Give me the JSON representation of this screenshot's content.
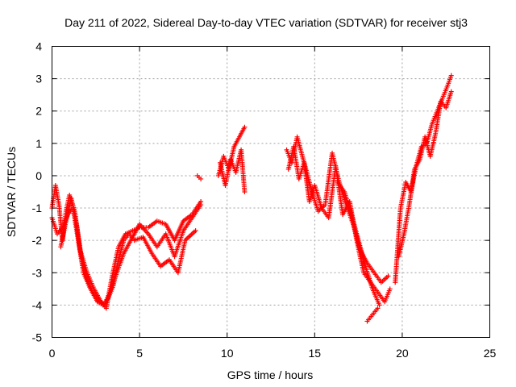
{
  "chart_data": {
    "type": "scatter",
    "title": "Day 211 of 2022, Sidereal Day-to-day VTEC variation (SDTVAR) for receiver stj3",
    "xlabel": "GPS time / hours",
    "ylabel": "SDTVAR / TECUs",
    "xlim": [
      0,
      25
    ],
    "ylim": [
      -5,
      4
    ],
    "xticks": [
      "0",
      "5",
      "10",
      "15",
      "20",
      "25"
    ],
    "yticks": [
      "-5",
      "-4",
      "-3",
      "-2",
      "-1",
      "0",
      "1",
      "2",
      "3",
      "4"
    ],
    "grid": true,
    "marker": "+",
    "color": "#ff0000",
    "series": [
      {
        "name": "SDTVAR",
        "segments": [
          {
            "x": [
              0.0,
              0.2,
              0.4,
              0.6,
              0.8,
              1.0,
              1.3,
              1.6,
              2.0,
              2.4,
              2.8,
              3.1,
              3.4,
              3.8,
              4.2,
              4.6,
              5.0,
              5.5,
              6.0,
              6.5,
              7.0,
              7.5,
              8.0,
              8.5
            ],
            "y": [
              -1.0,
              -0.3,
              -0.9,
              -2.0,
              -1.1,
              -0.6,
              -1.1,
              -2.3,
              -3.0,
              -3.5,
              -3.9,
              -4.1,
              -3.2,
              -2.2,
              -1.8,
              -1.7,
              -1.6,
              -1.6,
              -1.4,
              -1.5,
              -2.0,
              -1.4,
              -1.2,
              -0.8
            ]
          },
          {
            "x": [
              0.0,
              0.3,
              0.6,
              0.9,
              1.2,
              1.5,
              1.8,
              2.2,
              2.6,
              3.0,
              3.3,
              3.7,
              4.1,
              4.5,
              5.0,
              5.5,
              6.0,
              6.5,
              7.0,
              7.5,
              8.0,
              8.5
            ],
            "y": [
              -1.3,
              -1.8,
              -1.6,
              -1.2,
              -1.0,
              -2.0,
              -3.0,
              -3.5,
              -3.8,
              -4.0,
              -3.6,
              -3.0,
              -2.4,
              -2.0,
              -1.5,
              -1.8,
              -2.2,
              -1.8,
              -2.5,
              -1.7,
              -1.3,
              -0.9
            ]
          },
          {
            "x": [
              0.5,
              0.8,
              1.1,
              1.4,
              1.7,
              2.0,
              2.3,
              2.6,
              2.9,
              3.2,
              3.5,
              3.8,
              4.1,
              4.4,
              4.7,
              5.2,
              5.7,
              6.2,
              6.7,
              7.2,
              7.6,
              8.2
            ],
            "y": [
              -2.2,
              -1.4,
              -0.7,
              -1.5,
              -2.6,
              -3.2,
              -3.6,
              -3.9,
              -4.0,
              -3.8,
              -3.4,
              -2.6,
              -2.0,
              -1.8,
              -2.0,
              -1.9,
              -2.4,
              -2.8,
              -2.6,
              -3.0,
              -2.0,
              -1.7
            ]
          },
          {
            "x": [
              8.3,
              8.5
            ],
            "y": [
              0.0,
              -0.1
            ]
          },
          {
            "x": [
              9.5,
              9.8,
              10.1,
              10.4,
              10.7,
              11.0
            ],
            "y": [
              0.0,
              0.6,
              0.2,
              0.9,
              1.2,
              1.5
            ]
          },
          {
            "x": [
              9.6,
              9.9,
              10.2,
              10.5,
              10.8,
              11.0
            ],
            "y": [
              0.4,
              -0.3,
              0.5,
              0.1,
              0.8,
              -0.5
            ]
          },
          {
            "x": [
              13.4,
              13.7,
              14.0,
              14.3,
              14.6,
              14.9,
              15.2,
              15.6,
              16.0,
              16.4,
              16.8,
              17.2,
              17.6,
              18.0,
              18.4,
              18.8,
              19.2
            ],
            "y": [
              0.8,
              0.4,
              1.2,
              0.6,
              0.0,
              -0.6,
              -1.1,
              -0.9,
              0.7,
              -0.2,
              -0.9,
              -1.5,
              -2.3,
              -2.7,
              -3.0,
              -3.3,
              -3.1
            ]
          },
          {
            "x": [
              13.5,
              13.8,
              14.1,
              14.4,
              14.7,
              15.0,
              15.4,
              15.8,
              16.2,
              16.6,
              17.0,
              17.4,
              17.8,
              18.2,
              18.6,
              19.0,
              19.3
            ],
            "y": [
              0.2,
              0.9,
              -0.1,
              0.4,
              -0.8,
              -0.3,
              -1.0,
              -1.3,
              0.3,
              -1.2,
              -0.8,
              -2.0,
              -3.0,
              -3.3,
              -3.6,
              -3.9,
              -3.5
            ]
          },
          {
            "x": [
              16.3,
              16.7,
              17.1,
              17.5,
              17.9,
              18.3,
              18.7
            ],
            "y": [
              -0.2,
              -0.5,
              -1.2,
              -2.0,
              -2.8,
              -3.5,
              -4.0
            ]
          },
          {
            "x": [
              18.0,
              18.3,
              18.6
            ],
            "y": [
              -4.5,
              -4.3,
              -4.1
            ]
          },
          {
            "x": [
              19.6,
              19.9,
              20.2,
              20.5,
              20.8,
              21.1,
              21.4,
              21.7,
              22.0,
              22.3,
              22.6,
              22.8
            ],
            "y": [
              -3.3,
              -1.0,
              -0.2,
              -0.5,
              0.3,
              0.9,
              1.0,
              1.6,
              2.0,
              2.4,
              2.8,
              3.1
            ]
          },
          {
            "x": [
              19.8,
              20.1,
              20.4,
              20.7,
              21.0,
              21.3,
              21.6,
              21.9,
              22.2,
              22.5,
              22.8
            ],
            "y": [
              -2.5,
              -1.8,
              -0.9,
              0.2,
              0.5,
              1.2,
              0.6,
              1.3,
              2.3,
              2.1,
              2.6
            ]
          }
        ]
      }
    ]
  }
}
